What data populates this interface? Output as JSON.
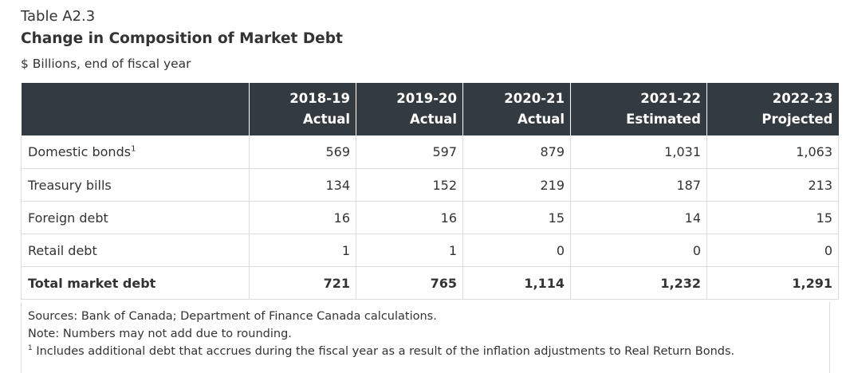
{
  "table": {
    "number": "Table A2.3",
    "title": "Change in Composition of Market Debt",
    "units": "$ Billions, end of fiscal year",
    "columns": [
      {
        "year": "2018-19",
        "status": "Actual"
      },
      {
        "year": "2019-20",
        "status": "Actual"
      },
      {
        "year": "2020-21",
        "status": "Actual"
      },
      {
        "year": "2021-22",
        "status": "Estimated"
      },
      {
        "year": "2022-23",
        "status": "Projected"
      }
    ],
    "rows": [
      {
        "label": "Domestic bonds",
        "footnote_ref": "1",
        "values": [
          "569",
          "597",
          "879",
          "1,031",
          "1,063"
        ]
      },
      {
        "label": "Treasury bills",
        "values": [
          "134",
          "152",
          "219",
          "187",
          "213"
        ]
      },
      {
        "label": "Foreign debt",
        "values": [
          "16",
          "16",
          "15",
          "14",
          "15"
        ]
      },
      {
        "label": "Retail debt",
        "values": [
          "1",
          "1",
          "0",
          "0",
          "0"
        ]
      },
      {
        "label": "Total market debt",
        "values": [
          "721",
          "765",
          "1,114",
          "1,232",
          "1,291"
        ]
      }
    ]
  },
  "notes": {
    "sources": "Sources: Bank of Canada; Department of Finance Canada calculations.",
    "note": "Note: Numbers may not add due to rounding.",
    "footnote_marker": "1",
    "footnote": "Includes additional debt that accrues during the fiscal year as a result of the inflation adjustments to Real Return Bonds."
  }
}
